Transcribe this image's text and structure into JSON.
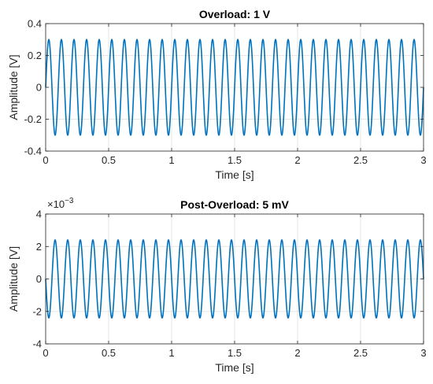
{
  "chart_data": [
    {
      "type": "line",
      "title": "Overload: 1 V",
      "xlabel": "Time [s]",
      "ylabel": "Amplitude [V]",
      "xlim": [
        0,
        3
      ],
      "ylim": [
        -0.4,
        0.4
      ],
      "xticks": [
        "0",
        "0.5",
        "1",
        "1.5",
        "2",
        "2.5",
        "3"
      ],
      "yticks": [
        "-0.4",
        "-0.2",
        "0",
        "0.2",
        "0.4"
      ],
      "grid": true,
      "color": "#0072BD",
      "series": [
        {
          "function": "sine",
          "amplitude": 0.3,
          "frequency_hz": 10,
          "phase": 0,
          "x_range": [
            0,
            3
          ]
        }
      ]
    },
    {
      "type": "line",
      "title": "Post-Overload: 5 mV",
      "xlabel": "Time [s]",
      "ylabel": "Amplitude [V]",
      "xlim": [
        0,
        3
      ],
      "ylim": [
        -4,
        4
      ],
      "xticks": [
        "0",
        "0.5",
        "1",
        "1.5",
        "2",
        "2.5",
        "3"
      ],
      "yticks": [
        "-4",
        "-2",
        "0",
        "2",
        "4"
      ],
      "y_exponent_base": "×10",
      "y_exponent": "−3",
      "grid": true,
      "color": "#0072BD",
      "series": [
        {
          "function": "sine",
          "amplitude": 2.4,
          "frequency_hz": 10,
          "phase": 3.1416,
          "x_range": [
            0,
            3
          ]
        }
      ]
    }
  ]
}
